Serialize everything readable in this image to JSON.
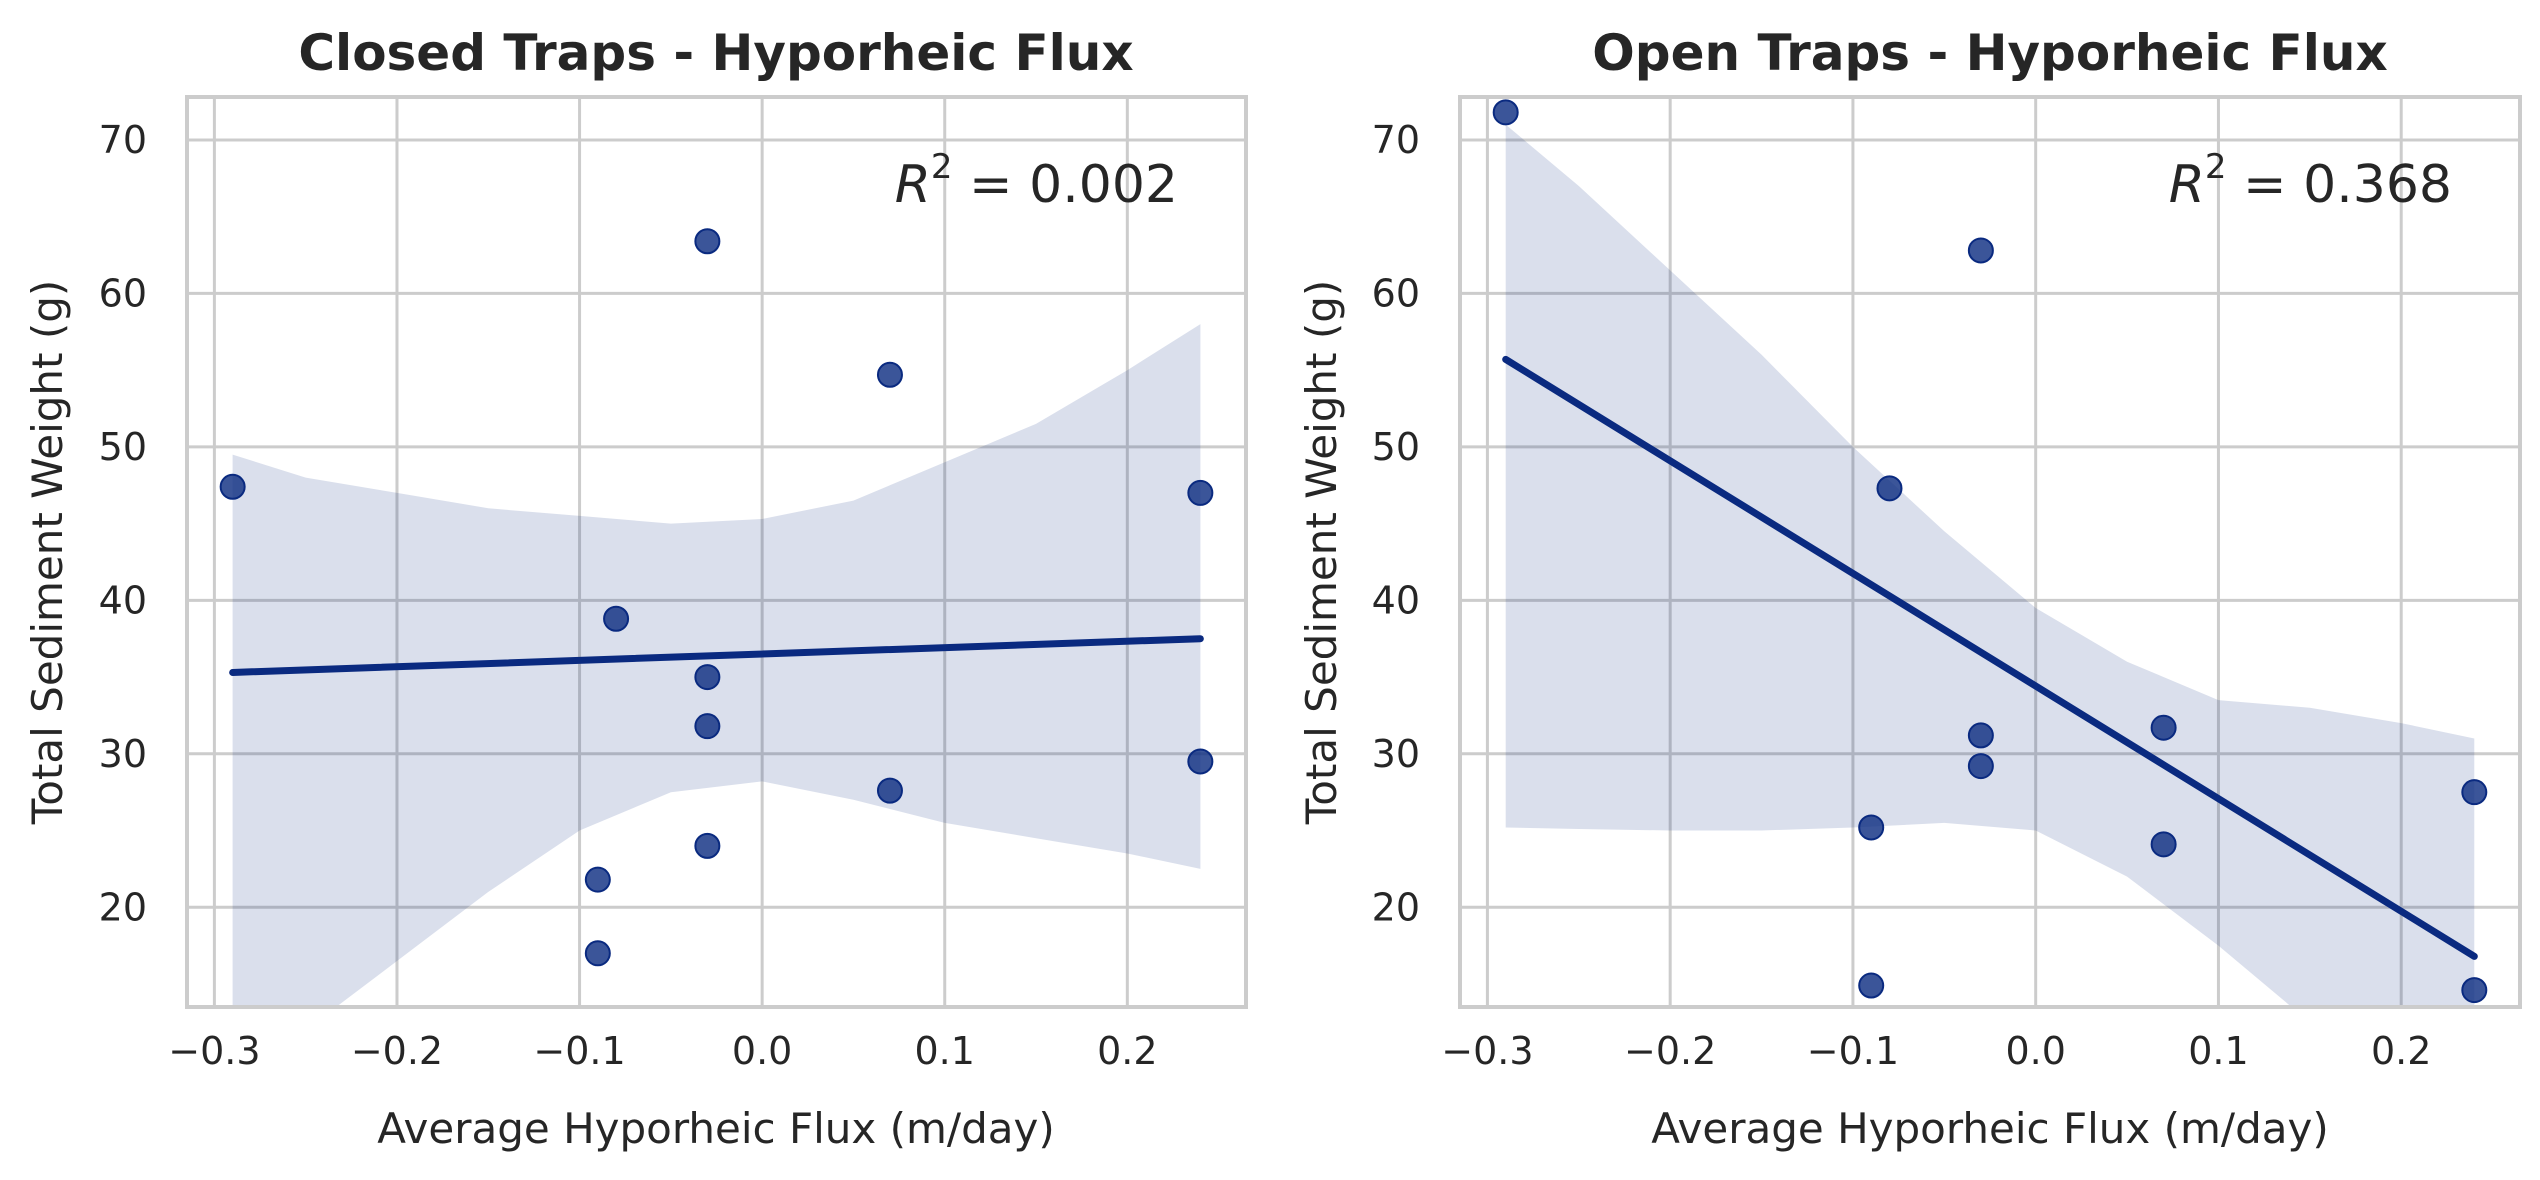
{
  "chart_data": [
    {
      "type": "scatter",
      "title": "Closed Traps - Hyporheic Flux",
      "xlabel": "Average Hyporheic Flux (m/day)",
      "ylabel": "Total Sediment Weight (g)",
      "xlim": [
        -0.315,
        0.265
      ],
      "ylim": [
        13.5,
        72.8
      ],
      "xticks": [
        -0.3,
        -0.2,
        -0.1,
        0.0,
        0.1,
        0.2
      ],
      "xtick_labels": [
        "−0.3",
        "−0.2",
        "−0.1",
        "0.0",
        "0.1",
        "0.2"
      ],
      "yticks": [
        20,
        30,
        40,
        50,
        60,
        70
      ],
      "ytick_labels": [
        "20",
        "30",
        "40",
        "50",
        "60",
        "70"
      ],
      "grid": true,
      "annotation_text": "= 0.002",
      "points": [
        {
          "x": -0.29,
          "y": 47.4
        },
        {
          "x": -0.09,
          "y": 21.8
        },
        {
          "x": -0.09,
          "y": 17.0
        },
        {
          "x": -0.08,
          "y": 38.8
        },
        {
          "x": -0.03,
          "y": 63.4
        },
        {
          "x": -0.03,
          "y": 35.0
        },
        {
          "x": -0.03,
          "y": 31.8
        },
        {
          "x": -0.03,
          "y": 24.0
        },
        {
          "x": 0.07,
          "y": 54.7
        },
        {
          "x": 0.07,
          "y": 27.6
        },
        {
          "x": 0.24,
          "y": 47.0
        },
        {
          "x": 0.24,
          "y": 29.5
        }
      ],
      "regression": {
        "x": [
          -0.29,
          0.24
        ],
        "y": [
          35.3,
          37.5
        ]
      },
      "ci_band": {
        "x": [
          -0.29,
          -0.25,
          -0.2,
          -0.15,
          -0.1,
          -0.05,
          0.0,
          0.05,
          0.1,
          0.15,
          0.2,
          0.24
        ],
        "upper": [
          49.5,
          48.0,
          47.0,
          46.0,
          45.5,
          45.0,
          45.3,
          46.5,
          49.0,
          51.5,
          55.0,
          58.0
        ],
        "lower": [
          9.0,
          12.0,
          16.5,
          21.0,
          25.0,
          27.5,
          28.2,
          27.0,
          25.5,
          24.5,
          23.5,
          22.5
        ]
      }
    },
    {
      "type": "scatter",
      "title": "Open Traps - Hyporheic Flux",
      "xlabel": "Average Hyporheic Flux (m/day)",
      "ylabel": "Total Sediment Weight (g)",
      "xlim": [
        -0.315,
        0.265
      ],
      "ylim": [
        13.5,
        72.8
      ],
      "xticks": [
        -0.3,
        -0.2,
        -0.1,
        0.0,
        0.1,
        0.2
      ],
      "xtick_labels": [
        "−0.3",
        "−0.2",
        "−0.1",
        "0.0",
        "0.1",
        "0.2"
      ],
      "yticks": [
        20,
        30,
        40,
        50,
        60,
        70
      ],
      "ytick_labels": [
        "20",
        "30",
        "40",
        "50",
        "60",
        "70"
      ],
      "grid": true,
      "annotation_text": "= 0.368",
      "points": [
        {
          "x": -0.29,
          "y": 71.8
        },
        {
          "x": -0.09,
          "y": 25.2
        },
        {
          "x": -0.09,
          "y": 14.9
        },
        {
          "x": -0.08,
          "y": 47.3
        },
        {
          "x": -0.03,
          "y": 62.8
        },
        {
          "x": -0.03,
          "y": 31.2
        },
        {
          "x": -0.03,
          "y": 29.2
        },
        {
          "x": 0.07,
          "y": 31.7
        },
        {
          "x": 0.07,
          "y": 24.1
        },
        {
          "x": 0.24,
          "y": 27.5
        },
        {
          "x": 0.24,
          "y": 14.6
        }
      ],
      "regression": {
        "x": [
          -0.29,
          0.24
        ],
        "y": [
          55.7,
          16.8
        ]
      },
      "ci_band": {
        "x": [
          -0.29,
          -0.25,
          -0.2,
          -0.15,
          -0.1,
          -0.05,
          0.0,
          0.05,
          0.1,
          0.15,
          0.2,
          0.24
        ],
        "upper": [
          71.0,
          67.0,
          61.5,
          56.0,
          50.0,
          44.5,
          39.5,
          36.0,
          33.5,
          33.0,
          32.0,
          31.0
        ],
        "lower": [
          25.2,
          25.1,
          25.0,
          25.0,
          25.2,
          25.5,
          25.0,
          22.0,
          17.5,
          12.5,
          7.5,
          3.0
        ]
      }
    }
  ]
}
